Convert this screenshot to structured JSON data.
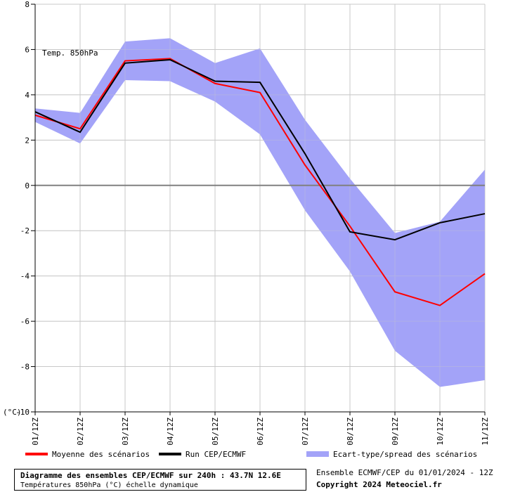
{
  "chart_data": {
    "type": "line",
    "title": "Diagramme des ensembles CEP/ECMWF sur 240h : 43.7N 12.6E",
    "subtitle": "Températures 850hPa (°C) échelle dynamique",
    "inner_label": "Temp. 850hPa",
    "ylabel": "(°C)",
    "ylim": [
      -10,
      8
    ],
    "yticks": [
      8,
      6,
      4,
      2,
      0,
      -2,
      -4,
      -6,
      -8,
      -10
    ],
    "categories": [
      "01/12Z",
      "02/12Z",
      "03/12Z",
      "04/12Z",
      "05/12Z",
      "06/12Z",
      "07/12Z",
      "08/12Z",
      "09/12Z",
      "10/12Z",
      "11/12Z"
    ],
    "grid": true,
    "series": [
      {
        "name": "Moyenne des scénarios",
        "color": "#ff0000",
        "values": [
          3.1,
          2.5,
          5.5,
          5.6,
          4.5,
          4.1,
          0.9,
          -1.8,
          -4.7,
          -5.3,
          -3.9
        ]
      },
      {
        "name": "Run CEP/ECMWF",
        "color": "#000000",
        "values": [
          3.25,
          2.35,
          5.4,
          5.55,
          4.6,
          4.55,
          1.4,
          -2.05,
          -2.4,
          -1.65,
          -1.25
        ]
      }
    ],
    "band": {
      "name": "Ecart-type/spread des scénarios",
      "color": "#a3a3f8",
      "upper": [
        3.4,
        3.2,
        6.35,
        6.5,
        5.4,
        6.05,
        2.9,
        0.3,
        -2.1,
        -1.6,
        0.7
      ],
      "lower": [
        2.8,
        1.85,
        4.65,
        4.6,
        3.7,
        2.25,
        -1.1,
        -3.8,
        -7.3,
        -8.9,
        -8.6
      ]
    }
  },
  "footer": {
    "ensemble": "Ensemble ECMWF/CEP du 01/01/2024 - 12Z",
    "copyright": "Copyright 2024 Meteociel.fr"
  }
}
